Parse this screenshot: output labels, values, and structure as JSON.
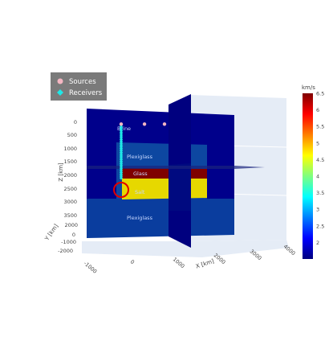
{
  "chart_data": {
    "type": "3d-volume-slices",
    "title": "",
    "legend": [
      {
        "name": "Sources",
        "marker": "circle",
        "color": "#f4b6c2"
      },
      {
        "name": "Receivers",
        "marker": "diamond",
        "color": "#1ee8e8"
      }
    ],
    "colorbar": {
      "title": "km/s",
      "min": 1.5,
      "max": 6.5,
      "ticks": [
        "6.5",
        "6",
        "5.5",
        "5",
        "4.5",
        "4",
        "3.5",
        "3",
        "2.5",
        "2"
      ],
      "colorscale": "jet"
    },
    "axes": {
      "x": {
        "label": "X [km]",
        "ticks": [
          "-1000",
          "0",
          "1000",
          "2000",
          "3000",
          "4000"
        ]
      },
      "y": {
        "label": "Y [km]",
        "ticks": [
          "2000",
          "0",
          "-1000",
          "-2000"
        ]
      },
      "z": {
        "label": "Z [km]",
        "ticks": [
          "0",
          "500",
          "1000",
          "1500",
          "2000",
          "2500",
          "3000",
          "3500"
        ]
      }
    },
    "layers": [
      {
        "name": "Brine",
        "velocity": 1.5
      },
      {
        "name": "Plexiglass",
        "velocity": 2.7
      },
      {
        "name": "Glass",
        "velocity": 5.8
      },
      {
        "name": "Salt",
        "velocity": 4.5
      },
      {
        "name": "Plexiglass",
        "velocity": 2.7
      }
    ],
    "sources": {
      "count": 3,
      "z": 100,
      "x": [
        0,
        700,
        1300
      ]
    },
    "receivers": {
      "count": 30,
      "x": 0,
      "z_range": [
        100,
        2100
      ]
    }
  }
}
